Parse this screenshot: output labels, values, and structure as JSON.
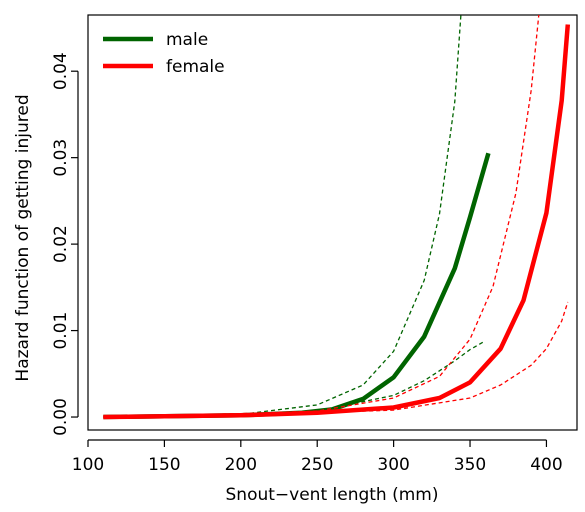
{
  "chart_data": {
    "type": "line",
    "xlabel": "Snout−vent length (mm)",
    "ylabel": "Hazard function of getting injured",
    "xlim": [
      100,
      420
    ],
    "ylim": [
      -0.0015,
      0.0465
    ],
    "x_ticks": [
      100,
      150,
      200,
      250,
      300,
      350,
      400
    ],
    "y_ticks": [
      0.0,
      0.01,
      0.02,
      0.03,
      0.04
    ],
    "x_tick_labels": [
      "100",
      "150",
      "200",
      "250",
      "300",
      "350",
      "400"
    ],
    "y_tick_labels": [
      "0.00",
      "0.01",
      "0.02",
      "0.03",
      "0.04"
    ],
    "grid": false,
    "legend_position": "top-left",
    "series": [
      {
        "name": "male",
        "color": "#006400",
        "style": "solid",
        "x": [
          110,
          150,
          200,
          240,
          260,
          280,
          300,
          320,
          340,
          350,
          362
        ],
        "y": [
          0.0,
          0.0001,
          0.0002,
          0.0005,
          0.0009,
          0.0021,
          0.0046,
          0.0093,
          0.0172,
          0.0231,
          0.0305
        ]
      },
      {
        "name": "male lower bound",
        "color": "#006400",
        "style": "dashed",
        "x": [
          110,
          200,
          250,
          300,
          320,
          340,
          350,
          360
        ],
        "y": [
          0.0,
          0.0002,
          0.0007,
          0.0025,
          0.0042,
          0.0065,
          0.0078,
          0.0088
        ]
      },
      {
        "name": "male upper bound",
        "color": "#006400",
        "style": "dashed",
        "x": [
          110,
          200,
          250,
          280,
          300,
          320,
          330,
          340,
          344
        ],
        "y": [
          0.0,
          0.0003,
          0.0014,
          0.0037,
          0.0076,
          0.0158,
          0.0235,
          0.0365,
          0.0465
        ]
      },
      {
        "name": "female",
        "color": "#ff0000",
        "style": "solid",
        "x": [
          110,
          200,
          250,
          300,
          330,
          350,
          370,
          385,
          400,
          410,
          414
        ],
        "y": [
          0.0,
          0.0002,
          0.0005,
          0.0011,
          0.0022,
          0.004,
          0.0079,
          0.0135,
          0.0236,
          0.0366,
          0.0454
        ]
      },
      {
        "name": "female lower bound",
        "color": "#ff0000",
        "style": "dashed",
        "x": [
          110,
          250,
          300,
          350,
          370,
          390,
          400,
          410,
          414
        ],
        "y": [
          0.0,
          0.0005,
          0.0008,
          0.0022,
          0.0037,
          0.006,
          0.0079,
          0.0111,
          0.0133
        ]
      },
      {
        "name": "female upper bound",
        "color": "#ff0000",
        "style": "dashed",
        "x": [
          110,
          200,
          250,
          300,
          330,
          350,
          365,
          380,
          390,
          395
        ],
        "y": [
          0.0,
          0.0004,
          0.0007,
          0.0022,
          0.0047,
          0.009,
          0.0151,
          0.0259,
          0.0378,
          0.0465
        ]
      }
    ],
    "legend": [
      {
        "label": "male",
        "color": "#006400"
      },
      {
        "label": "female",
        "color": "#ff0000"
      }
    ]
  }
}
